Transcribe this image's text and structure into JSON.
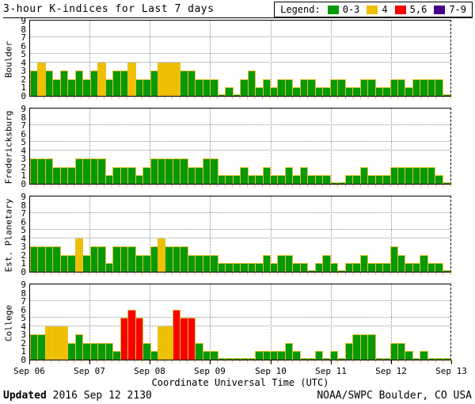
{
  "page": {
    "title": "3-hour K-indices for Last 7 days",
    "legend": {
      "label": "Legend:",
      "items": [
        {
          "label": "0-3",
          "color": "#089908"
        },
        {
          "label": "4",
          "color": "#f0c000"
        },
        {
          "label": "5,6",
          "color": "#f80000"
        },
        {
          "label": "7-9",
          "color": "#470085"
        }
      ]
    },
    "footer": {
      "updated_label": "Updated",
      "updated_value": " 2016 Sep 12 2130",
      "source": "NOAA/SWPC Boulder, CO USA"
    }
  },
  "chart_data": {
    "type": "bar",
    "title": "3-hour K-indices for Last 7 days",
    "xlabel": "Coordinate Universal Time (UTC)",
    "x_tick_labels": [
      "Sep 06",
      "Sep 07",
      "Sep 08",
      "Sep 09",
      "Sep 10",
      "Sep 11",
      "Sep 12",
      "Sep 13"
    ],
    "ylim": [
      0,
      9
    ],
    "y_tick_labels": [
      0,
      1,
      2,
      3,
      4,
      5,
      6,
      7,
      8,
      9
    ],
    "dotted_gridlines_at_k": [
      4,
      5,
      7
    ],
    "bars_per_day": 8,
    "legend_rule": "K 0-3 green, K 4 yellow, K 5-6 red, K 7-9 purple",
    "colors": {
      "green": "#089908",
      "yellow": "#f0c000",
      "red": "#f80000",
      "purple": "#470085",
      "bar_outline": "#e2c233",
      "gridline": "#8f8f8f"
    },
    "panels": [
      {
        "name": "Boulder",
        "values": [
          3,
          4,
          3,
          2,
          3,
          2,
          3,
          2,
          3,
          4,
          2,
          3,
          3,
          4,
          2,
          2,
          3,
          4,
          4,
          4,
          3,
          3,
          2,
          2,
          2,
          0,
          1,
          0,
          2,
          3,
          1,
          2,
          1,
          2,
          2,
          1,
          2,
          2,
          1,
          1,
          2,
          2,
          1,
          1,
          2,
          2,
          1,
          1,
          2,
          2,
          1,
          2,
          2,
          2,
          2,
          0
        ]
      },
      {
        "name": "Fredericksburg",
        "values": [
          3,
          3,
          3,
          2,
          2,
          2,
          3,
          3,
          3,
          3,
          1,
          2,
          2,
          2,
          1,
          2,
          3,
          3,
          3,
          3,
          3,
          2,
          2,
          3,
          3,
          1,
          1,
          1,
          2,
          1,
          1,
          2,
          1,
          1,
          2,
          1,
          2,
          1,
          1,
          1,
          0,
          0,
          1,
          1,
          2,
          1,
          1,
          1,
          2,
          2,
          2,
          2,
          2,
          2,
          1,
          0
        ]
      },
      {
        "name": "Est. Planetary",
        "values": [
          3,
          3,
          3,
          3,
          2,
          2,
          4,
          2,
          3,
          3,
          1,
          3,
          3,
          3,
          2,
          2,
          3,
          4,
          3,
          3,
          3,
          2,
          2,
          2,
          2,
          1,
          1,
          1,
          1,
          1,
          1,
          2,
          1,
          2,
          2,
          1,
          1,
          0,
          1,
          2,
          1,
          0,
          1,
          1,
          2,
          1,
          1,
          1,
          3,
          2,
          1,
          1,
          2,
          1,
          1,
          0
        ]
      },
      {
        "name": "College",
        "values": [
          3,
          3,
          4,
          4,
          4,
          2,
          3,
          2,
          2,
          2,
          2,
          1,
          5,
          6,
          5,
          2,
          1,
          4,
          4,
          6,
          5,
          5,
          2,
          1,
          1,
          0,
          0,
          0,
          0,
          0,
          1,
          1,
          1,
          1,
          2,
          1,
          0,
          0,
          1,
          0,
          1,
          0,
          2,
          3,
          3,
          3,
          0,
          0,
          2,
          2,
          1,
          0,
          1,
          0,
          0,
          0
        ]
      }
    ]
  }
}
